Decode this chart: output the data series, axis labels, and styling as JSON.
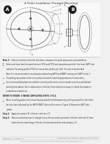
{
  "title": "# Probe Installation (Forward Mounting)",
  "bg_color": "#f0f0f0",
  "diagram_bg": "#ffffff",
  "title_color": "#222222",
  "line_color": "#888888",
  "dark_color": "#333333",
  "footer_left": "Installation  #  Forward  (A)",
  "footer_right": "# Probe Physical Installation Forward Mounting Page 1",
  "footer_url": "800-xxx- Hotline: Nov 3, June 20 2008  Toll Free: 800.xxx.xxx  http://www.ebtron.com"
}
